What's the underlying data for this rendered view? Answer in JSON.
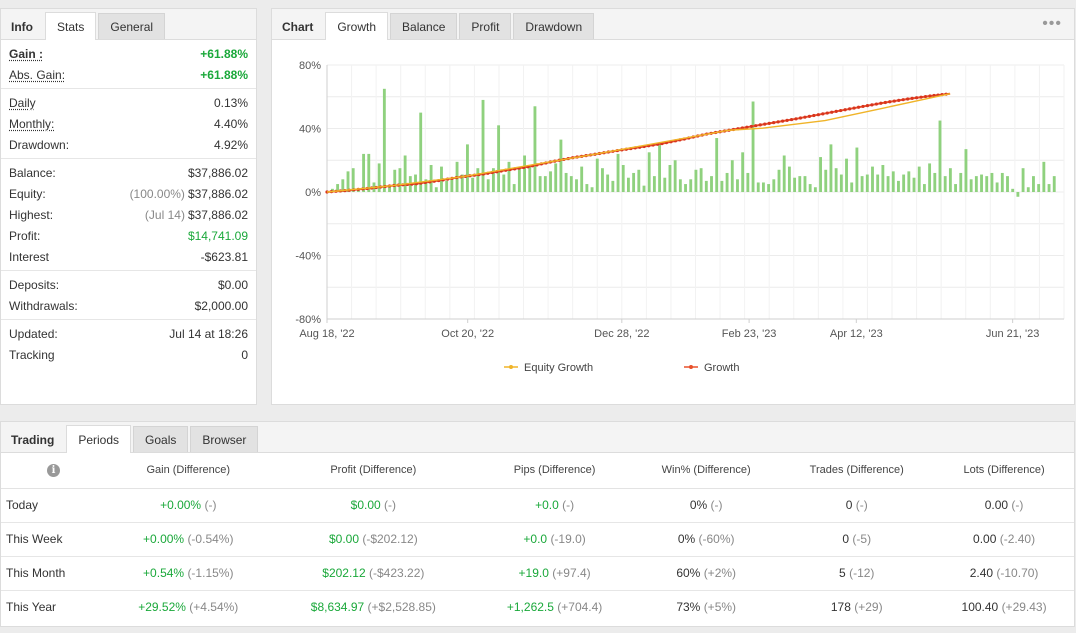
{
  "info_panel": {
    "tabs": [
      {
        "label": "Info"
      },
      {
        "label": "Stats"
      },
      {
        "label": "General"
      }
    ],
    "groups": [
      [
        {
          "label": "Gain :",
          "value": "+61.88%",
          "style": "green",
          "lstyle": "bold-ul"
        },
        {
          "label": "Abs. Gain:",
          "value": "+61.88%",
          "style": "green",
          "lstyle": "ul"
        }
      ],
      [
        {
          "label": "Daily",
          "value": "0.13%",
          "lstyle": "ul"
        },
        {
          "label": "Monthly:",
          "value": "4.40%",
          "lstyle": "ul"
        },
        {
          "label": "Drawdown:",
          "value": "4.92%"
        }
      ],
      [
        {
          "label": "Balance:",
          "value": "$37,886.02"
        },
        {
          "label": "Equity:",
          "prefix": "(100.00%)",
          "value": "$37,886.02"
        },
        {
          "label": "Highest:",
          "prefix": "(Jul 14)",
          "value": "$37,886.02"
        },
        {
          "label": "Profit:",
          "value": "$14,741.09",
          "style": "greenn"
        },
        {
          "label": "Interest",
          "value": "-$623.81"
        }
      ],
      [
        {
          "label": "Deposits:",
          "value": "$0.00"
        },
        {
          "label": "Withdrawals:",
          "value": "$2,000.00"
        }
      ],
      [
        {
          "label": "Updated:",
          "value": "Jul 14 at 18:26"
        },
        {
          "label": "Tracking",
          "value": "0"
        }
      ]
    ]
  },
  "chart_panel": {
    "tabs": [
      {
        "label": "Chart"
      },
      {
        "label": "Growth"
      },
      {
        "label": "Balance"
      },
      {
        "label": "Profit"
      },
      {
        "label": "Drawdown"
      }
    ],
    "menu_icon": "more-dots-icon"
  },
  "chart_data": {
    "type": "line",
    "x_range": [
      "2022-08-18",
      "2023-07-14"
    ],
    "xticks": [
      "Aug 18, '22",
      "Oct 20, '22",
      "Dec 28, '22",
      "Feb 23, '23",
      "Apr 12, '23",
      "Jun 21, '23"
    ],
    "ylim": [
      -80,
      80
    ],
    "yticks": [
      "80%",
      "40%",
      "0%",
      "-40%",
      "-80%"
    ],
    "grid": true,
    "legend": {
      "placement": "bottom",
      "entries": [
        "Equity Growth",
        "Growth"
      ]
    },
    "series": [
      {
        "name": "Growth",
        "color": "#e8502a",
        "points": [
          [
            0,
            0
          ],
          [
            10,
            1.1
          ],
          [
            20,
            2.5
          ],
          [
            30,
            4.1
          ],
          [
            40,
            5.2
          ],
          [
            50,
            7.2
          ],
          [
            60,
            9.5
          ],
          [
            70,
            11.3
          ],
          [
            80,
            13.7
          ],
          [
            90,
            15.9
          ],
          [
            100,
            18.9
          ],
          [
            110,
            21.6
          ],
          [
            120,
            23.8
          ],
          [
            130,
            26.1
          ],
          [
            140,
            28.2
          ],
          [
            150,
            30.5
          ],
          [
            160,
            33.4
          ],
          [
            170,
            36.5
          ],
          [
            180,
            38.9
          ],
          [
            190,
            41.3
          ],
          [
            200,
            43.7
          ],
          [
            210,
            46.1
          ],
          [
            220,
            48.7
          ],
          [
            230,
            51.3
          ],
          [
            240,
            53.9
          ],
          [
            250,
            56.4
          ],
          [
            260,
            58.6
          ],
          [
            270,
            60.5
          ],
          [
            279,
            61.9
          ]
        ]
      },
      {
        "name": "Equity Growth",
        "color": "#f0b429",
        "points": [
          [
            0,
            0
          ],
          [
            30,
            4.1
          ],
          [
            60,
            9.5
          ],
          [
            120,
            23.8
          ],
          [
            180,
            38.9
          ],
          [
            195,
            40.2
          ],
          [
            223,
            45.0
          ],
          [
            248,
            52.5
          ],
          [
            279,
            61.9
          ]
        ]
      }
    ],
    "bars": {
      "color": "#8fd17e",
      "values": [
        2,
        5,
        8,
        13,
        15,
        2,
        24,
        24,
        6,
        18,
        65,
        4,
        14,
        15,
        23,
        10,
        11,
        50,
        8,
        17,
        3,
        16,
        7,
        9,
        19,
        11,
        30,
        9,
        15,
        58,
        8,
        15,
        42,
        11,
        19,
        5,
        15,
        23,
        16,
        54,
        10,
        10,
        13,
        18,
        33,
        12,
        10,
        8,
        16,
        5,
        3,
        21,
        15,
        11,
        7,
        24,
        17,
        9,
        12,
        14,
        4,
        25,
        10,
        30,
        9,
        17,
        20,
        8,
        5,
        8,
        14,
        15,
        7,
        10,
        34,
        7,
        12,
        20,
        8,
        25,
        12,
        57,
        6,
        6,
        5,
        8,
        14,
        23,
        16,
        9,
        10,
        10,
        5,
        3,
        22,
        14,
        30,
        15,
        11,
        21,
        6,
        28,
        10,
        11,
        16,
        11,
        17,
        10,
        13,
        7,
        11,
        13,
        9,
        16,
        5,
        18,
        12,
        45,
        10,
        15,
        5,
        12,
        27,
        8,
        10,
        11,
        10,
        12,
        6,
        12,
        10,
        2,
        -3,
        15,
        3,
        10,
        5,
        19,
        5,
        10
      ]
    }
  },
  "trading_panel": {
    "tabs": [
      {
        "label": "Trading"
      },
      {
        "label": "Periods"
      },
      {
        "label": "Goals"
      },
      {
        "label": "Browser"
      }
    ],
    "columns": [
      "Gain (Difference)",
      "Profit (Difference)",
      "Pips (Difference)",
      "Win% (Difference)",
      "Trades (Difference)",
      "Lots (Difference)"
    ],
    "rows": [
      {
        "label": "Today",
        "gain": "+0.00%",
        "gain_d": "(-)",
        "profit": "$0.00",
        "profit_d": "(-)",
        "pips": "+0.0",
        "pips_d": "(-)",
        "win": "0%",
        "win_d": "(-)",
        "trades": "0",
        "trades_d": "(-)",
        "lots": "0.00",
        "lots_d": "(-)"
      },
      {
        "label": "This Week",
        "gain": "+0.00%",
        "gain_d": "(-0.54%)",
        "profit": "$0.00",
        "profit_d": "(-$202.12)",
        "pips": "+0.0",
        "pips_d": "(-19.0)",
        "win": "0%",
        "win_d": "(-60%)",
        "trades": "0",
        "trades_d": "(-5)",
        "lots": "0.00",
        "lots_d": "(-2.40)"
      },
      {
        "label": "This Month",
        "gain": "+0.54%",
        "gain_d": "(-1.15%)",
        "profit": "$202.12",
        "profit_d": "(-$423.22)",
        "pips": "+19.0",
        "pips_d": "(+97.4)",
        "win": "60%",
        "win_d": "(+2%)",
        "trades": "5",
        "trades_d": "(-12)",
        "lots": "2.40",
        "lots_d": "(-10.70)"
      },
      {
        "label": "This Year",
        "gain": "+29.52%",
        "gain_d": "(+4.54%)",
        "profit": "$8,634.97",
        "profit_d": "(+$2,528.85)",
        "pips": "+1,262.5",
        "pips_d": "(+704.4)",
        "win": "73%",
        "win_d": "(+5%)",
        "trades": "178",
        "trades_d": "(+29)",
        "lots": "100.40",
        "lots_d": "(+29.43)"
      }
    ]
  }
}
